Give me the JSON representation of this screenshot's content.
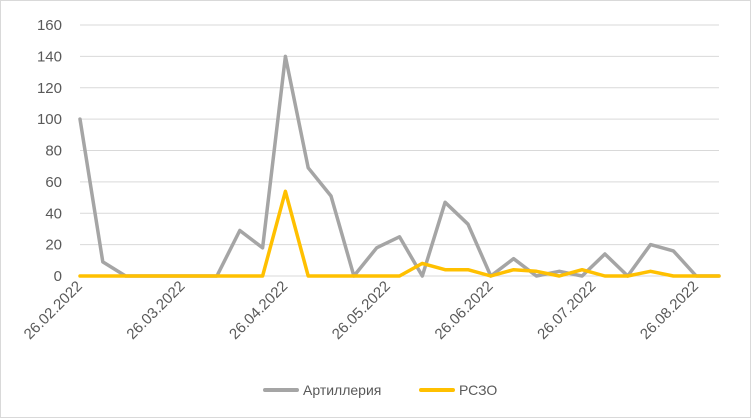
{
  "chart_data": {
    "type": "line",
    "title": "",
    "xlabel": "",
    "ylabel": "",
    "ylim": [
      0,
      160
    ],
    "y_ticks": [
      0,
      20,
      40,
      60,
      80,
      100,
      120,
      140,
      160
    ],
    "y_tick_labels": [
      "0",
      "20",
      "40",
      "60",
      "80",
      "100",
      "120",
      "140",
      "160"
    ],
    "x_tick_labels": [
      "26.02.2022",
      "26.03.2022",
      "26.04.2022",
      "26.05.2022",
      "26.06.2022",
      "26.07.2022",
      "26.08.2022"
    ],
    "grid": "horizontal",
    "legend_position": "bottom",
    "series": [
      {
        "name": "Артиллерия",
        "color": "#a5a5a5",
        "values": [
          100,
          9,
          0,
          0,
          0,
          0,
          0,
          29,
          18,
          140,
          69,
          51,
          0,
          18,
          25,
          0,
          47,
          33,
          0,
          11,
          0,
          3,
          0,
          14,
          0,
          20,
          16,
          0,
          0
        ]
      },
      {
        "name": "РСЗО",
        "color": "#ffc000",
        "values": [
          0,
          0,
          0,
          0,
          0,
          0,
          0,
          0,
          0,
          54,
          0,
          0,
          0,
          0,
          0,
          8,
          4,
          4,
          0,
          4,
          3,
          0,
          4,
          0,
          0,
          3,
          0,
          0,
          0
        ]
      }
    ]
  }
}
